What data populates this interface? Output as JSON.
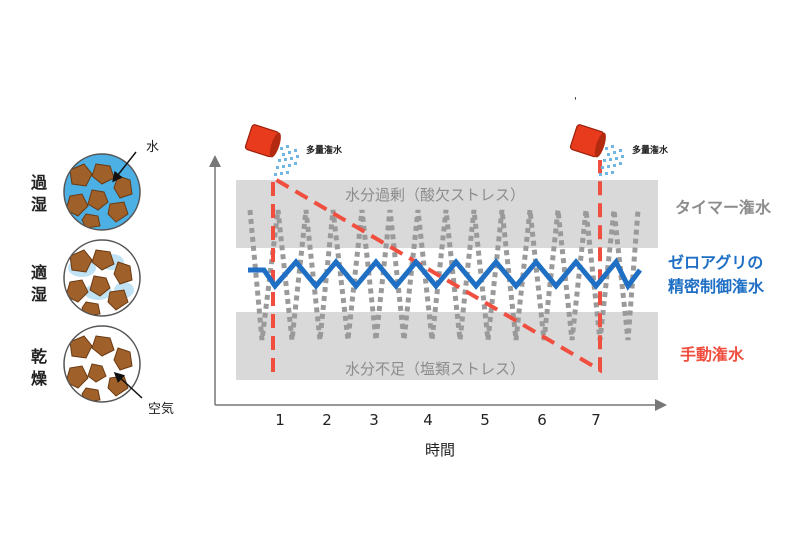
{
  "soil_states": [
    {
      "label": "過湿",
      "color": "#4cb0e4"
    },
    {
      "label": "適湿",
      "color": "#bfe3f5"
    },
    {
      "label": "乾燥",
      "color": "#ffffff"
    }
  ],
  "soil_notes": {
    "water": "水",
    "air": "空気"
  },
  "chart": {
    "over_band_label": "水分過剰（酸欠ストレス）",
    "under_band_label": "水分不足（塩類ストレス）",
    "x_axis_title": "時間",
    "x_ticks": [
      "1",
      "2",
      "3",
      "4",
      "5",
      "6",
      "7"
    ],
    "bucket_label": "多量潅水",
    "stray_mark": "'",
    "band_color": "#d9d9d9"
  },
  "legend": {
    "timer": {
      "label": "タイマー潅水",
      "color": "#8c8c8c"
    },
    "zero_agri_line1": "ゼロアグリの",
    "zero_agri_line2": "精密制御潅水",
    "zero_agri_color": "#1f6fc4",
    "manual": {
      "label": "手動潅水",
      "color": "#f04e3e"
    }
  }
}
